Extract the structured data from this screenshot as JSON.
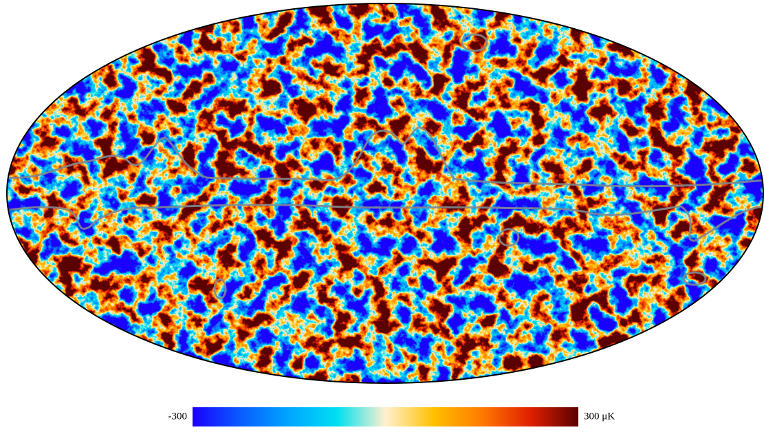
{
  "colorbar": {
    "lim": [
      -300,
      300
    ],
    "ticks": [
      -300,
      {
        "value": 300,
        "label": "300 μK"
      }
    ],
    "colors": [
      "#1a00ff",
      "#0a5cff",
      "#00a6ff",
      "#00e0f0",
      "#fff1d0",
      "#ffc000",
      "#ff7a00",
      "#e02000",
      "#5a0000"
    ]
  }
}
